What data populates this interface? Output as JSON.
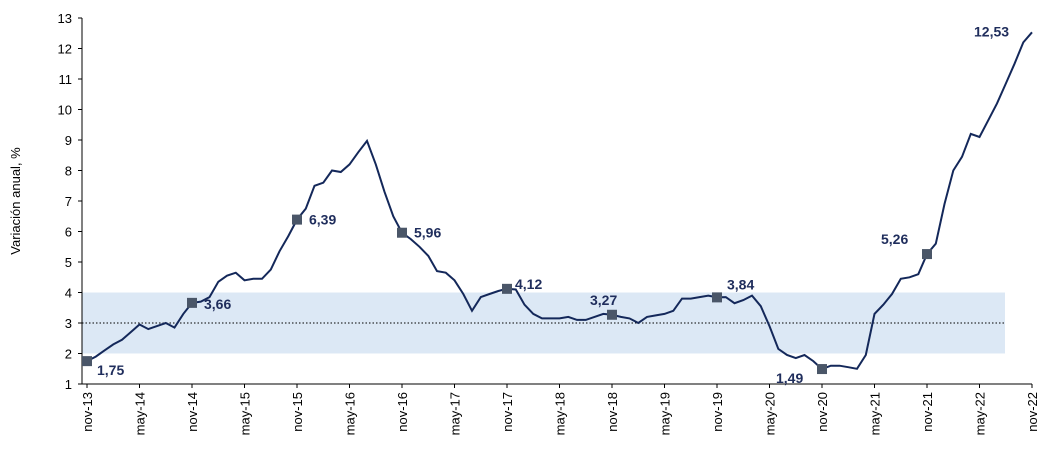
{
  "chart_data": {
    "type": "line",
    "y_label": "Variación anual, %",
    "categories": [
      "nov-13",
      null,
      null,
      null,
      null,
      null,
      "may-14",
      null,
      null,
      null,
      null,
      null,
      "nov-14",
      null,
      null,
      null,
      null,
      null,
      "may-15",
      null,
      null,
      null,
      null,
      null,
      "nov-15",
      null,
      null,
      null,
      null,
      null,
      "may-16",
      null,
      null,
      null,
      null,
      null,
      "nov-16",
      null,
      null,
      null,
      null,
      null,
      "may-17",
      null,
      null,
      null,
      null,
      null,
      "nov-17",
      null,
      null,
      null,
      null,
      null,
      "may-18",
      null,
      null,
      null,
      null,
      null,
      "nov-18",
      null,
      null,
      null,
      null,
      null,
      "may-19",
      null,
      null,
      null,
      null,
      null,
      "nov-19",
      null,
      null,
      null,
      null,
      null,
      "may-20",
      null,
      null,
      null,
      null,
      null,
      "nov-20",
      null,
      null,
      null,
      null,
      null,
      "may-21",
      null,
      null,
      null,
      null,
      null,
      "nov-21",
      null,
      null,
      null,
      null,
      null,
      "may-22",
      null,
      null,
      null,
      null,
      null,
      "nov-22"
    ],
    "values": [
      1.75,
      1.9,
      2.1,
      2.3,
      2.45,
      2.7,
      2.95,
      2.8,
      2.9,
      3.0,
      2.85,
      3.3,
      3.66,
      3.7,
      3.85,
      4.35,
      4.55,
      4.65,
      4.4,
      4.45,
      4.45,
      4.75,
      5.35,
      5.85,
      6.39,
      6.75,
      7.5,
      7.6,
      8.0,
      7.95,
      8.2,
      8.6,
      8.97,
      8.2,
      7.3,
      6.5,
      5.96,
      5.75,
      5.5,
      5.2,
      4.7,
      4.65,
      4.4,
      3.95,
      3.4,
      3.85,
      3.95,
      4.05,
      4.12,
      4.1,
      3.6,
      3.3,
      3.15,
      3.15,
      3.15,
      3.2,
      3.1,
      3.1,
      3.2,
      3.3,
      3.27,
      3.2,
      3.15,
      3.0,
      3.2,
      3.25,
      3.3,
      3.4,
      3.8,
      3.8,
      3.85,
      3.9,
      3.84,
      3.85,
      3.65,
      3.75,
      3.9,
      3.55,
      2.9,
      2.15,
      1.95,
      1.85,
      1.95,
      1.75,
      1.49,
      1.6,
      1.6,
      1.55,
      1.5,
      1.95,
      3.3,
      3.6,
      3.95,
      4.45,
      4.5,
      4.6,
      5.26,
      5.6,
      6.9,
      8.0,
      8.45,
      9.2,
      9.1,
      9.65,
      10.2,
      10.85,
      11.5,
      12.2,
      12.53
    ],
    "value_labels": [
      "1,75",
      null,
      null,
      null,
      null,
      null,
      null,
      null,
      null,
      null,
      null,
      null,
      "3,66",
      null,
      null,
      null,
      null,
      null,
      null,
      null,
      null,
      null,
      null,
      null,
      "6,39",
      null,
      null,
      null,
      null,
      null,
      null,
      null,
      null,
      null,
      null,
      null,
      "5,96",
      null,
      null,
      null,
      null,
      null,
      null,
      null,
      null,
      null,
      null,
      null,
      "4,12",
      null,
      null,
      null,
      null,
      null,
      null,
      null,
      null,
      null,
      null,
      null,
      "3,27",
      null,
      null,
      null,
      null,
      null,
      null,
      null,
      null,
      null,
      null,
      null,
      "3,84",
      null,
      null,
      null,
      null,
      null,
      null,
      null,
      null,
      null,
      null,
      null,
      "1,49",
      null,
      null,
      null,
      null,
      null,
      null,
      null,
      null,
      null,
      null,
      null,
      "5,26",
      null,
      null,
      null,
      null,
      null,
      null,
      null,
      null,
      null,
      null,
      null,
      "12,53"
    ],
    "color": "#14285a",
    "marker_color": "#4a5668",
    "target": 3,
    "target_band": [
      2,
      4
    ],
    "band_color": "#dce8f5",
    "ylim": [
      1,
      13
    ],
    "yticks": [
      1,
      2,
      3,
      4,
      5,
      6,
      7,
      8,
      9,
      10,
      11,
      12,
      13
    ]
  }
}
